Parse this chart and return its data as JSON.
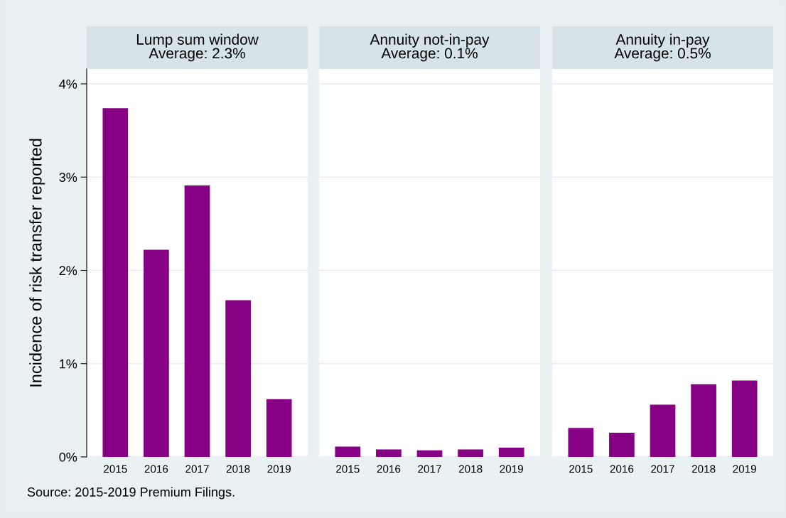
{
  "chart_data": [
    {
      "type": "bar",
      "title": "Lump sum window",
      "subtitle": "Average: 2.3%",
      "ylabel": "Incidence of risk transfer reported",
      "categories": [
        "2015",
        "2016",
        "2017",
        "2018",
        "2019"
      ],
      "values": [
        3.74,
        2.22,
        2.91,
        1.68,
        0.62
      ],
      "color": "#850082",
      "ylim": [
        0,
        4.16
      ],
      "yticks": [
        {
          "value": 0,
          "label": "0%"
        },
        {
          "value": 1,
          "label": "1%"
        },
        {
          "value": 2,
          "label": "2%"
        },
        {
          "value": 3,
          "label": "3%"
        },
        {
          "value": 4,
          "label": "4%"
        }
      ],
      "grid": "y",
      "annotations": [
        "Source: 2015-2019 Premium Filings."
      ]
    },
    {
      "type": "bar",
      "title": "Annuity not-in-pay",
      "subtitle": "Average: 0.1%",
      "categories": [
        "2015",
        "2016",
        "2017",
        "2018",
        "2019"
      ],
      "values": [
        0.11,
        0.08,
        0.07,
        0.08,
        0.1
      ],
      "color": "#850082",
      "ylim": [
        0,
        4.16
      ],
      "grid": "y",
      "tick_labels": "x"
    },
    {
      "type": "bar",
      "title": "Annuity in-pay",
      "subtitle": "Average: 0.5%",
      "categories": [
        "2015",
        "2016",
        "2017",
        "2018",
        "2019"
      ],
      "values": [
        0.31,
        0.26,
        0.56,
        0.78,
        0.82
      ],
      "color": "#850082",
      "ylim": [
        0,
        4.16
      ],
      "grid": "y",
      "tick_labels": "x"
    }
  ]
}
